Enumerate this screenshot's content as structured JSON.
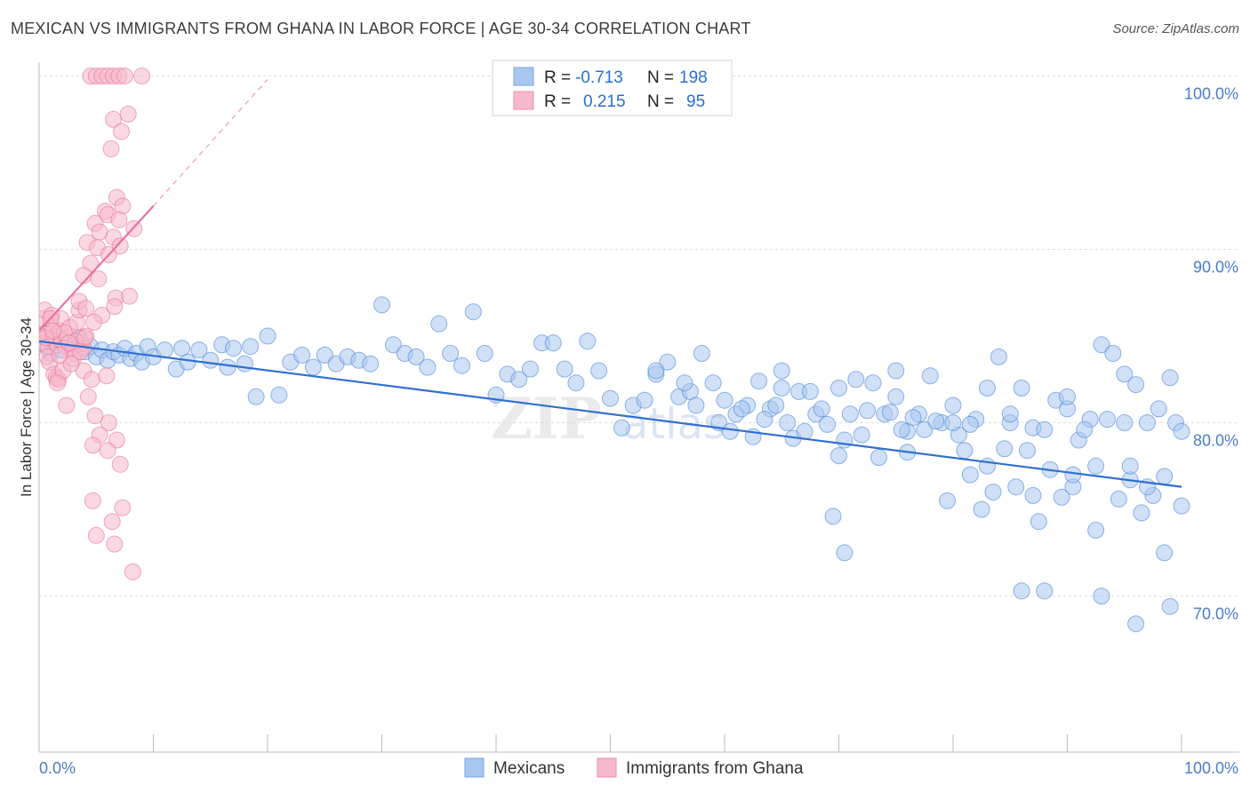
{
  "title": "MEXICAN VS IMMIGRANTS FROM GHANA IN LABOR FORCE | AGE 30-34 CORRELATION CHART",
  "source": "Source: ZipAtlas.com",
  "watermark": {
    "part1": "ZIP",
    "part2": "atlas"
  },
  "legend": {
    "rows": [
      {
        "r_label": "R =",
        "r_value": "-0.713",
        "n_label": "N =",
        "n_value": "198",
        "color": "#a9c6f0"
      },
      {
        "r_label": "R =",
        "r_value": "0.215",
        "n_label": "N =",
        "n_value": "95",
        "color": "#f6b8cb"
      }
    ]
  },
  "bottom_legend": [
    {
      "label": "Mexicans",
      "color": "#a9c6f0"
    },
    {
      "label": "Immigrants from Ghana",
      "color": "#f6b8cb"
    }
  ],
  "chart_data": {
    "type": "scatter",
    "ylabel": "In Labor Force | Age 30-34",
    "x_tick_labels": [
      "0.0%",
      "100.0%"
    ],
    "y_tick_labels": [
      "100.0%",
      "90.0%",
      "80.0%",
      "70.0%"
    ],
    "y_ticks": [
      100,
      90,
      80,
      70
    ],
    "xlim": [
      0,
      100
    ],
    "ylim": [
      61,
      101
    ],
    "grid": true,
    "series": [
      {
        "name": "Mexicans",
        "color": "#4a86d8",
        "fill": "#a9c6f0",
        "trend": {
          "x": [
            0,
            100
          ],
          "y": [
            84.7,
            76.3
          ]
        },
        "points": [
          [
            0.5,
            84.5
          ],
          [
            1.0,
            84.0
          ],
          [
            1.5,
            84.8
          ],
          [
            2.0,
            84.2
          ],
          [
            2.5,
            84.6
          ],
          [
            3.0,
            84.3
          ],
          [
            3.5,
            84.9
          ],
          [
            4.0,
            84.1
          ],
          [
            4.5,
            84.4
          ],
          [
            5.0,
            83.8
          ],
          [
            5.5,
            84.2
          ],
          [
            6.0,
            83.6
          ],
          [
            6.5,
            84.1
          ],
          [
            7.0,
            83.9
          ],
          [
            7.5,
            84.3
          ],
          [
            8.0,
            83.7
          ],
          [
            8.5,
            84.0
          ],
          [
            9.0,
            83.5
          ],
          [
            9.5,
            84.4
          ],
          [
            10.0,
            83.8
          ],
          [
            11.0,
            84.2
          ],
          [
            12.0,
            83.1
          ],
          [
            12.5,
            84.3
          ],
          [
            13.0,
            83.5
          ],
          [
            14.0,
            84.2
          ],
          [
            15.0,
            83.6
          ],
          [
            16.0,
            84.5
          ],
          [
            16.5,
            83.2
          ],
          [
            17.0,
            84.3
          ],
          [
            18.0,
            83.4
          ],
          [
            18.5,
            84.4
          ],
          [
            19.0,
            81.5
          ],
          [
            20.0,
            85.0
          ],
          [
            21.0,
            81.6
          ],
          [
            22.0,
            83.5
          ],
          [
            23.0,
            83.9
          ],
          [
            24.0,
            83.2
          ],
          [
            25.0,
            83.9
          ],
          [
            26.0,
            83.4
          ],
          [
            27.0,
            83.8
          ],
          [
            28.0,
            83.6
          ],
          [
            29.0,
            83.4
          ],
          [
            30.0,
            86.8
          ],
          [
            31.0,
            84.5
          ],
          [
            32.0,
            84.0
          ],
          [
            33.0,
            83.8
          ],
          [
            34.0,
            83.2
          ],
          [
            35.0,
            85.7
          ],
          [
            36.0,
            84.0
          ],
          [
            37.0,
            83.3
          ],
          [
            38.0,
            86.4
          ],
          [
            39.0,
            84.0
          ],
          [
            40.0,
            81.6
          ],
          [
            41.0,
            82.8
          ],
          [
            42.0,
            82.5
          ],
          [
            43.0,
            83.1
          ],
          [
            44.0,
            84.6
          ],
          [
            45.0,
            84.6
          ],
          [
            46.0,
            83.1
          ],
          [
            47.0,
            82.3
          ],
          [
            48.0,
            84.7
          ],
          [
            49.0,
            83.0
          ],
          [
            50.0,
            81.4
          ],
          [
            51.0,
            79.7
          ],
          [
            52.0,
            81.0
          ],
          [
            53.0,
            81.3
          ],
          [
            54.0,
            82.8
          ],
          [
            55.0,
            83.5
          ],
          [
            56.0,
            81.5
          ],
          [
            57.0,
            81.8
          ],
          [
            58.0,
            84.0
          ],
          [
            59.0,
            82.3
          ],
          [
            60.0,
            81.3
          ],
          [
            61.0,
            80.5
          ],
          [
            62.0,
            81.0
          ],
          [
            63.0,
            82.4
          ],
          [
            64.0,
            80.8
          ],
          [
            65.0,
            82.0
          ],
          [
            66.0,
            79.1
          ],
          [
            67.0,
            79.5
          ],
          [
            68.0,
            80.5
          ],
          [
            69.0,
            79.9
          ],
          [
            70.0,
            78.1
          ],
          [
            71.0,
            80.5
          ],
          [
            72.0,
            79.3
          ],
          [
            73.0,
            82.3
          ],
          [
            74.0,
            80.5
          ],
          [
            75.0,
            81.5
          ],
          [
            76.0,
            79.5
          ],
          [
            77.0,
            80.5
          ],
          [
            78.0,
            82.7
          ],
          [
            79.0,
            80.0
          ],
          [
            80.0,
            81.0
          ],
          [
            81.0,
            78.4
          ],
          [
            82.0,
            80.2
          ],
          [
            83.0,
            82.0
          ],
          [
            84.0,
            83.8
          ],
          [
            85.0,
            80.0
          ],
          [
            86.0,
            82.0
          ],
          [
            87.0,
            79.7
          ],
          [
            88.0,
            79.6
          ],
          [
            89.0,
            81.3
          ],
          [
            90.0,
            80.8
          ],
          [
            91.0,
            79.0
          ],
          [
            92.0,
            80.2
          ],
          [
            93.0,
            84.5
          ],
          [
            94.0,
            84.0
          ],
          [
            95.0,
            82.8
          ],
          [
            96.0,
            82.2
          ],
          [
            97.0,
            80.0
          ],
          [
            98.0,
            80.8
          ],
          [
            99.0,
            82.6
          ],
          [
            54.0,
            83.0
          ],
          [
            56.5,
            82.3
          ],
          [
            57.5,
            81.0
          ],
          [
            59.5,
            80.0
          ],
          [
            60.5,
            79.5
          ],
          [
            61.5,
            80.8
          ],
          [
            62.5,
            79.2
          ],
          [
            63.5,
            80.2
          ],
          [
            64.5,
            81.0
          ],
          [
            65.5,
            80.0
          ],
          [
            66.5,
            81.8
          ],
          [
            67.5,
            81.8
          ],
          [
            68.5,
            80.8
          ],
          [
            69.5,
            74.6
          ],
          [
            70.5,
            72.5
          ],
          [
            71.5,
            82.5
          ],
          [
            72.5,
            80.7
          ],
          [
            73.5,
            78.0
          ],
          [
            74.5,
            80.6
          ],
          [
            75.5,
            79.6
          ],
          [
            76.5,
            80.3
          ],
          [
            77.5,
            79.6
          ],
          [
            78.5,
            80.1
          ],
          [
            79.5,
            75.5
          ],
          [
            80.5,
            79.3
          ],
          [
            81.5,
            79.9
          ],
          [
            82.5,
            75.0
          ],
          [
            83.5,
            76.0
          ],
          [
            84.5,
            78.5
          ],
          [
            85.5,
            76.3
          ],
          [
            86.5,
            78.4
          ],
          [
            87.5,
            74.3
          ],
          [
            88.5,
            77.3
          ],
          [
            89.5,
            75.7
          ],
          [
            90.5,
            76.3
          ],
          [
            91.5,
            79.6
          ],
          [
            92.5,
            73.8
          ],
          [
            93.5,
            80.2
          ],
          [
            94.5,
            75.6
          ],
          [
            95.5,
            76.7
          ],
          [
            96.5,
            74.8
          ],
          [
            97.5,
            75.8
          ],
          [
            98.5,
            76.9
          ],
          [
            99.5,
            80.0
          ],
          [
            100.0,
            75.2
          ],
          [
            65.0,
            83.0
          ],
          [
            70.0,
            82.0
          ],
          [
            75.0,
            83.0
          ],
          [
            80.0,
            80.0
          ],
          [
            85.0,
            80.5
          ],
          [
            90.0,
            81.5
          ],
          [
            95.0,
            80.0
          ],
          [
            100.0,
            79.5
          ],
          [
            70.5,
            79.0
          ],
          [
            76.0,
            78.3
          ],
          [
            81.5,
            77.0
          ],
          [
            87.0,
            75.8
          ],
          [
            92.5,
            77.5
          ],
          [
            97.0,
            76.3
          ],
          [
            83.0,
            77.5
          ],
          [
            88.0,
            70.3
          ],
          [
            93.0,
            70.0
          ],
          [
            96.0,
            68.4
          ],
          [
            99.0,
            69.4
          ],
          [
            86.0,
            70.3
          ],
          [
            90.5,
            77.0
          ],
          [
            95.5,
            77.5
          ],
          [
            98.5,
            72.5
          ]
        ]
      },
      {
        "name": "Immigrants from Ghana",
        "color": "#e8739a",
        "fill": "#f6b8cb",
        "trend": {
          "x": [
            0,
            10
          ],
          "y": [
            85.3,
            92.5
          ]
        },
        "trend_dashed": {
          "x": [
            10,
            20
          ],
          "y": [
            92.5,
            99.8
          ]
        },
        "points": [
          [
            0.2,
            85.0
          ],
          [
            0.4,
            84.6
          ],
          [
            0.6,
            85.2
          ],
          [
            0.8,
            84.4
          ],
          [
            1.0,
            85.6
          ],
          [
            1.2,
            84.8
          ],
          [
            1.4,
            85.0
          ],
          [
            1.6,
            84.5
          ],
          [
            1.8,
            85.3
          ],
          [
            2.0,
            84.7
          ],
          [
            0.3,
            86.0
          ],
          [
            0.5,
            86.5
          ],
          [
            0.7,
            83.8
          ],
          [
            0.9,
            83.5
          ],
          [
            1.1,
            86.2
          ],
          [
            1.3,
            82.8
          ],
          [
            1.5,
            82.6
          ],
          [
            1.7,
            82.5
          ],
          [
            1.9,
            86.0
          ],
          [
            2.1,
            83.0
          ],
          [
            2.3,
            84.4
          ],
          [
            2.5,
            84.9
          ],
          [
            2.7,
            85.5
          ],
          [
            2.9,
            84.2
          ],
          [
            3.1,
            84.0
          ],
          [
            3.3,
            85.8
          ],
          [
            3.5,
            86.5
          ],
          [
            3.7,
            84.6
          ],
          [
            3.9,
            84.3
          ],
          [
            4.1,
            85.0
          ],
          [
            4.5,
            100.0
          ],
          [
            5.0,
            100.0
          ],
          [
            5.5,
            100.0
          ],
          [
            6.0,
            100.0
          ],
          [
            6.5,
            100.0
          ],
          [
            7.0,
            100.0
          ],
          [
            7.5,
            100.0
          ],
          [
            9.0,
            100.0
          ],
          [
            6.5,
            97.5
          ],
          [
            7.8,
            97.8
          ],
          [
            7.2,
            96.8
          ],
          [
            6.3,
            95.8
          ],
          [
            6.8,
            93.0
          ],
          [
            7.3,
            92.5
          ],
          [
            5.8,
            92.2
          ],
          [
            4.9,
            91.5
          ],
          [
            6.0,
            92.0
          ],
          [
            7.0,
            91.7
          ],
          [
            5.3,
            91.0
          ],
          [
            6.5,
            90.7
          ],
          [
            4.2,
            90.4
          ],
          [
            5.1,
            90.1
          ],
          [
            6.1,
            89.7
          ],
          [
            7.1,
            90.2
          ],
          [
            8.3,
            91.2
          ],
          [
            4.5,
            89.2
          ],
          [
            3.9,
            88.5
          ],
          [
            5.2,
            88.3
          ],
          [
            6.7,
            87.2
          ],
          [
            7.9,
            87.3
          ],
          [
            3.5,
            87.0
          ],
          [
            4.1,
            86.6
          ],
          [
            5.5,
            86.2
          ],
          [
            6.6,
            86.7
          ],
          [
            4.8,
            85.8
          ],
          [
            3.9,
            83.0
          ],
          [
            4.6,
            82.5
          ],
          [
            5.9,
            82.7
          ],
          [
            4.3,
            81.5
          ],
          [
            4.9,
            80.4
          ],
          [
            6.1,
            80.0
          ],
          [
            5.3,
            79.3
          ],
          [
            6.8,
            79.0
          ],
          [
            4.7,
            78.7
          ],
          [
            6.0,
            78.4
          ],
          [
            7.1,
            77.6
          ],
          [
            4.7,
            75.5
          ],
          [
            7.3,
            75.1
          ],
          [
            6.4,
            74.3
          ],
          [
            5.0,
            73.5
          ],
          [
            6.6,
            73.0
          ],
          [
            8.2,
            71.4
          ],
          [
            1.0,
            86.0
          ],
          [
            2.2,
            85.2
          ],
          [
            3.0,
            83.7
          ],
          [
            1.6,
            82.3
          ],
          [
            2.4,
            81.0
          ],
          [
            3.2,
            84.7
          ],
          [
            4.0,
            84.9
          ],
          [
            3.6,
            84.1
          ],
          [
            2.8,
            83.4
          ],
          [
            1.8,
            83.9
          ],
          [
            0.6,
            84.9
          ],
          [
            1.2,
            85.3
          ],
          [
            2.6,
            84.6
          ]
        ]
      }
    ]
  }
}
